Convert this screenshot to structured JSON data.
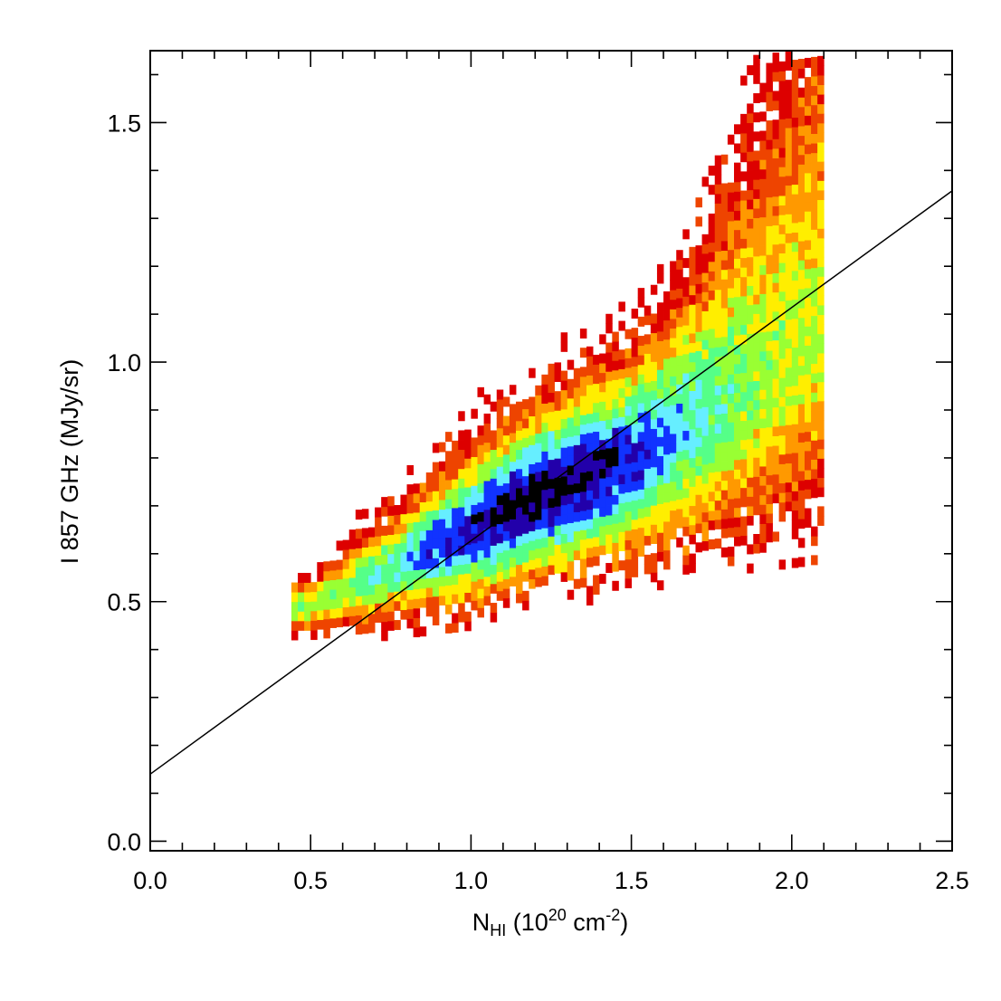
{
  "chart_data": {
    "type": "heatmap",
    "subtype": "2D density histogram with linear fit",
    "xlabel": {
      "base": "N",
      "sub": "HI",
      "rest": " (10",
      "sup1": "20",
      "unit": " cm",
      "sup2": "-2",
      "close": ")"
    },
    "ylabel": "I 857 GHz (MJy/sr)",
    "xlim": [
      0.0,
      2.5
    ],
    "ylim": [
      -0.02,
      1.65
    ],
    "xticks": [
      0.0,
      0.5,
      1.0,
      1.5,
      2.0,
      2.5
    ],
    "xtick_labels": [
      "0.0",
      "0.5",
      "1.0",
      "1.5",
      "2.0",
      "2.5"
    ],
    "yticks": [
      0.0,
      0.5,
      1.0,
      1.5
    ],
    "ytick_labels": [
      "0.0",
      "0.5",
      "1.0",
      "1.5"
    ],
    "x_minor_step": 0.1,
    "y_minor_step": 0.1,
    "fit_line": {
      "intercept": 0.14,
      "slope": 0.487,
      "x_range": [
        0.0,
        2.5
      ],
      "color": "#000000"
    },
    "density_ridge": [
      {
        "x": 0.5,
        "y": 0.49,
        "halfwidth": 0.03
      },
      {
        "x": 0.75,
        "y": 0.57,
        "halfwidth": 0.06
      },
      {
        "x": 1.0,
        "y": 0.65,
        "halfwidth": 0.09
      },
      {
        "x": 1.2,
        "y": 0.72,
        "halfwidth": 0.1
      },
      {
        "x": 1.5,
        "y": 0.8,
        "halfwidth": 0.12
      },
      {
        "x": 1.75,
        "y": 0.9,
        "halfwidth": 0.15
      },
      {
        "x": 2.0,
        "y": 1.02,
        "halfwidth": 0.2
      },
      {
        "x": 2.1,
        "y": 1.07,
        "halfwidth": 0.22
      }
    ],
    "peak_density": {
      "x": 1.22,
      "y": 0.7
    },
    "x_extent": [
      0.45,
      2.1
    ],
    "colormap": [
      "#dd0000",
      "#ee4400",
      "#ff9900",
      "#ffee00",
      "#99ff33",
      "#55ff88",
      "#66eeff",
      "#1133ff",
      "#2200aa",
      "#000000"
    ],
    "colormap_names": [
      "red",
      "orange-red",
      "orange",
      "yellow",
      "yellow-green",
      "green",
      "cyan",
      "blue",
      "dark-blue",
      "black"
    ]
  }
}
